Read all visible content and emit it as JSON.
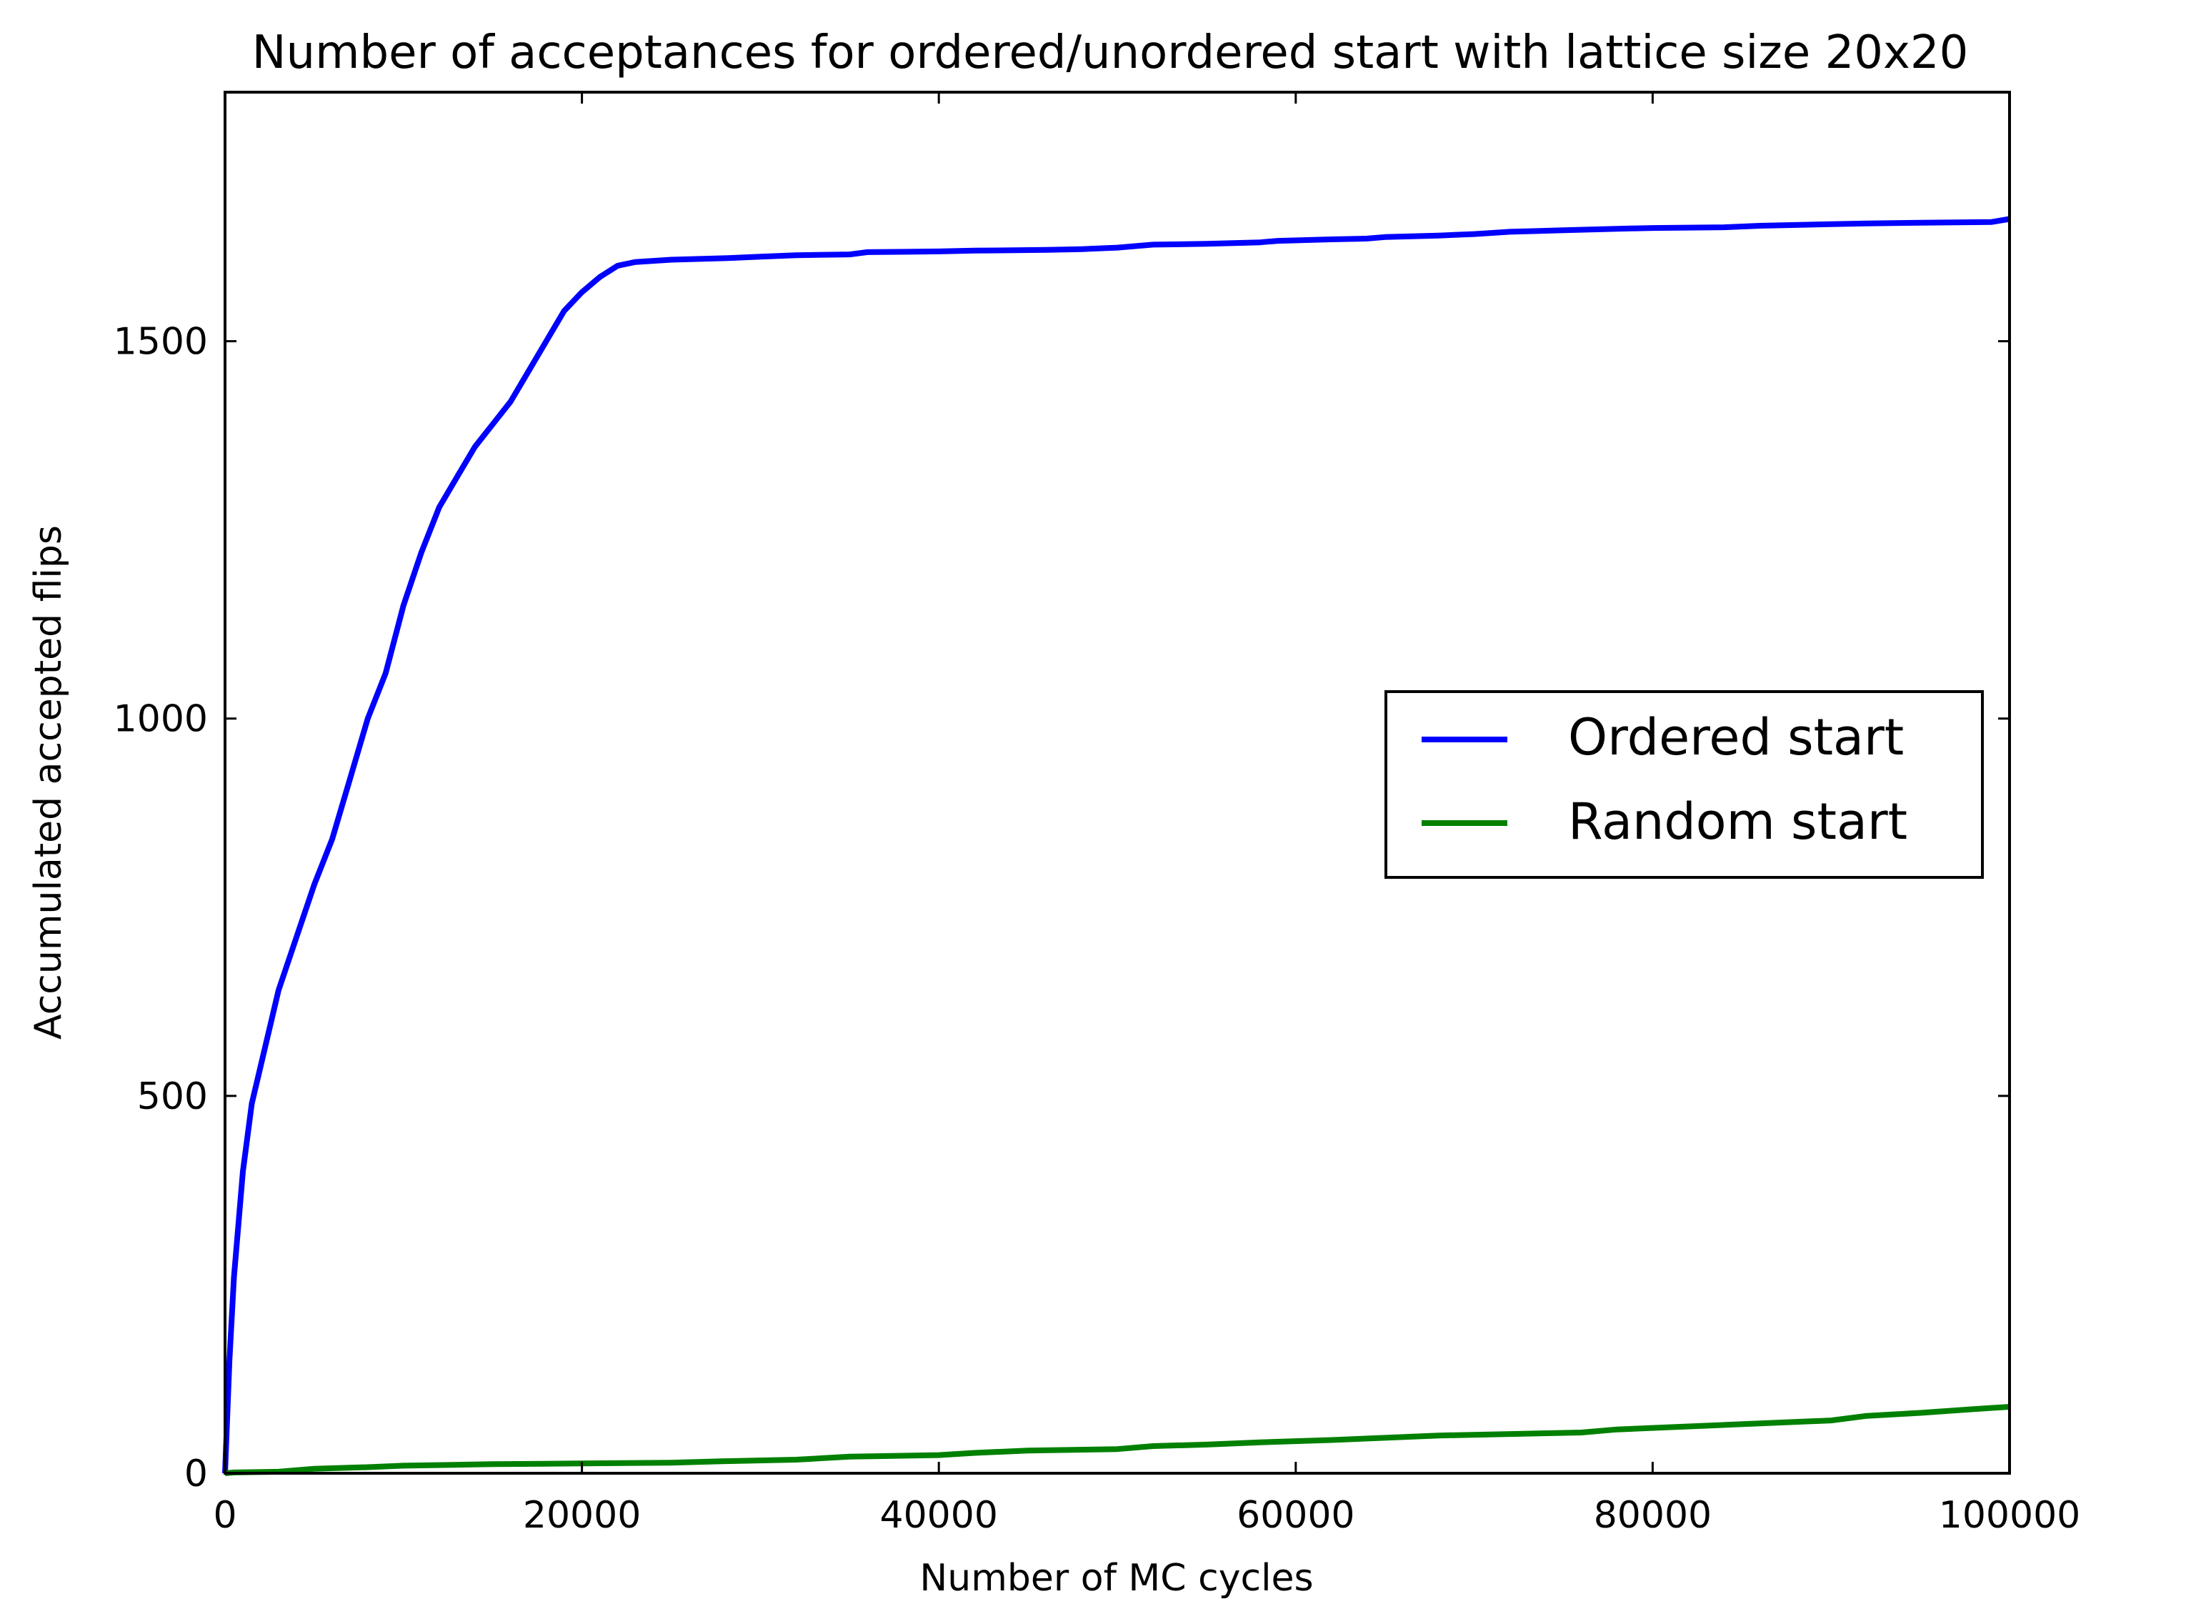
{
  "chart_data": {
    "type": "line",
    "title": "Number of acceptances for ordered/unordered start with lattice size 20x20",
    "xlabel": "Number of MC cycles",
    "ylabel": "Accumulated accepted flips",
    "xlim": [
      0,
      100000
    ],
    "ylim": [
      0,
      1830
    ],
    "xticks": [
      0,
      20000,
      40000,
      60000,
      80000,
      100000
    ],
    "xtick_labels": [
      "0",
      "20000",
      "40000",
      "60000",
      "80000",
      "100000"
    ],
    "yticks": [
      0,
      500,
      1000,
      1500
    ],
    "ytick_labels": [
      "0",
      "500",
      "1000",
      "1500"
    ],
    "grid": false,
    "legend_position": "center-right",
    "series": [
      {
        "name": "Ordered start",
        "color": "#0000ff",
        "x": [
          0,
          250,
          500,
          1000,
          1500,
          2000,
          3000,
          4000,
          5000,
          6000,
          7000,
          8000,
          9000,
          10000,
          11000,
          12000,
          13000,
          14000,
          15000,
          16000,
          17000,
          18000,
          19000,
          20000,
          21000,
          22000,
          23000,
          25000,
          28000,
          30000,
          32000,
          35000,
          36000,
          40000,
          42000,
          46000,
          48000,
          50000,
          51000,
          52000,
          55000,
          58000,
          59000,
          62000,
          64000,
          65000,
          68000,
          70000,
          72000,
          75000,
          78000,
          80000,
          84000,
          86000,
          90000,
          92000,
          95000,
          99000,
          100000
        ],
        "y": [
          0,
          150,
          260,
          400,
          490,
          540,
          640,
          710,
          780,
          840,
          920,
          1000,
          1060,
          1150,
          1220,
          1280,
          1320,
          1360,
          1390,
          1420,
          1460,
          1500,
          1540,
          1565,
          1585,
          1600,
          1605,
          1608,
          1610,
          1612,
          1614,
          1615,
          1618,
          1619,
          1620,
          1621,
          1622,
          1624,
          1626,
          1628,
          1629,
          1631,
          1633,
          1635,
          1636,
          1638,
          1640,
          1642,
          1645,
          1647,
          1649,
          1650,
          1651,
          1653,
          1655,
          1656,
          1657,
          1658,
          1662
        ]
      },
      {
        "name": "Random start",
        "color": "#008000",
        "x": [
          0,
          500,
          3000,
          5000,
          8000,
          10000,
          15000,
          20000,
          25000,
          28000,
          32000,
          35000,
          40000,
          42000,
          45000,
          50000,
          52000,
          55000,
          58000,
          62000,
          65000,
          68000,
          72000,
          76000,
          78000,
          82000,
          86000,
          90000,
          92000,
          95000,
          98000,
          100000
        ],
        "y": [
          0,
          1,
          2,
          6,
          8,
          10,
          12,
          13,
          14,
          16,
          18,
          22,
          24,
          27,
          30,
          32,
          36,
          38,
          41,
          44,
          47,
          50,
          52,
          54,
          58,
          62,
          66,
          70,
          76,
          80,
          85,
          88
        ]
      }
    ]
  }
}
